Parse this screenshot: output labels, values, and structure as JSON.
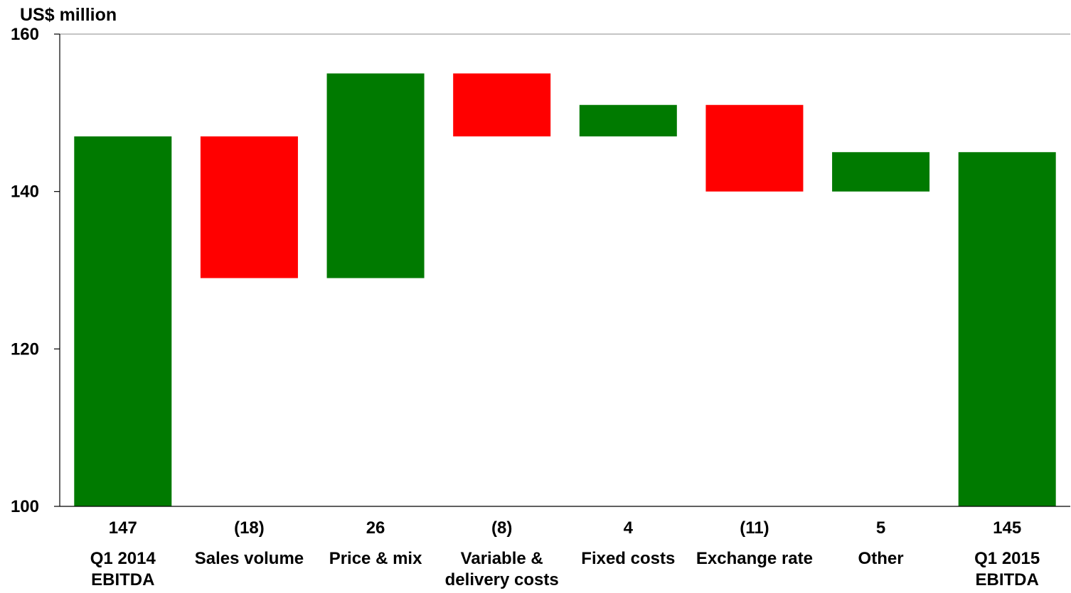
{
  "chart_data": {
    "type": "bar",
    "subtype": "waterfall",
    "ylabel": "US$ million",
    "ylim": [
      100,
      160
    ],
    "yticks": [
      100,
      120,
      140,
      160
    ],
    "grid": "top border line only",
    "colors": {
      "increase": "#007A00",
      "decrease": "#FF0000",
      "total": "#007A00"
    },
    "bars": [
      {
        "category": [
          "Q1 2014",
          "EBITDA"
        ],
        "label": "147",
        "kind": "total",
        "start": 100,
        "end": 147
      },
      {
        "category": [
          "Sales volume"
        ],
        "label": "(18)",
        "kind": "decrease",
        "start": 147,
        "end": 129
      },
      {
        "category": [
          "Price & mix"
        ],
        "label": "26",
        "kind": "increase",
        "start": 129,
        "end": 155
      },
      {
        "category": [
          "Variable &",
          "delivery costs"
        ],
        "label": "(8)",
        "kind": "decrease",
        "start": 155,
        "end": 147
      },
      {
        "category": [
          "Fixed costs"
        ],
        "label": "4",
        "kind": "increase",
        "start": 147,
        "end": 151
      },
      {
        "category": [
          "Exchange rate"
        ],
        "label": "(11)",
        "kind": "decrease",
        "start": 151,
        "end": 140
      },
      {
        "category": [
          "Other"
        ],
        "label": "5",
        "kind": "increase",
        "start": 140,
        "end": 145
      },
      {
        "category": [
          "Q1 2015",
          "EBITDA"
        ],
        "label": "145",
        "kind": "total",
        "start": 100,
        "end": 145
      }
    ]
  }
}
